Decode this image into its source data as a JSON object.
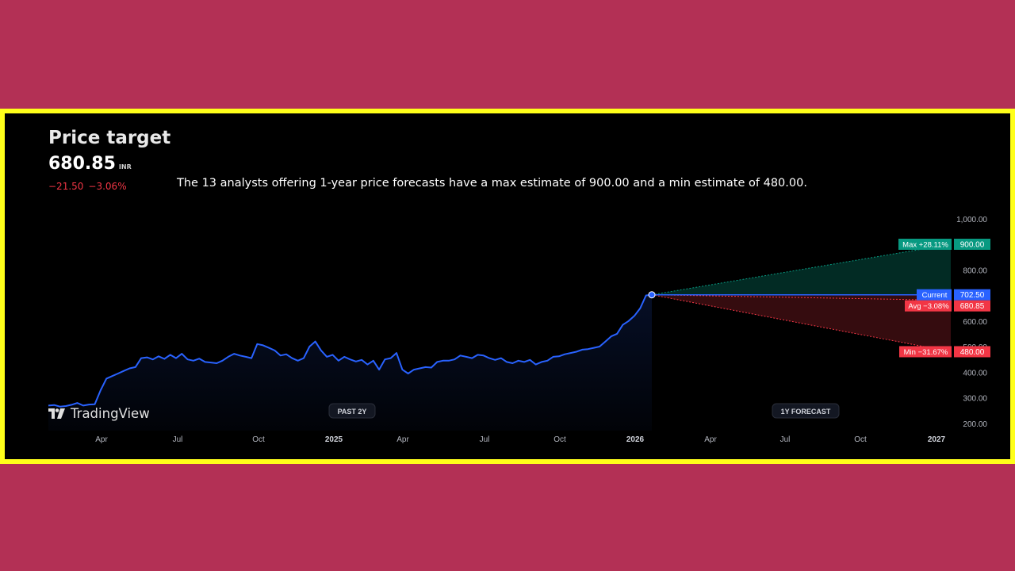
{
  "header": {
    "title": "Price target",
    "price": "680.85",
    "currency": "INR",
    "change_abs": "−21.50",
    "change_pct": "−3.06%",
    "summary": "The 13 analysts offering 1-year price forecasts have a max estimate of 900.00 and a min estimate of 480.00."
  },
  "brand": {
    "name": "TradingView",
    "logo_icon": "tradingview-logo-icon"
  },
  "colors": {
    "line": "#2962ff",
    "max": "#089981",
    "min": "#f23645",
    "avg": "#f23645",
    "current": "#2962ff",
    "frame": "#ffff1a",
    "background": "#b33055"
  },
  "chart_data": {
    "type": "line",
    "title": "Price target",
    "ylim": [
      200,
      1000
    ],
    "y_ticks": [
      "1,000.00",
      "800.00",
      "600.00",
      "500.00",
      "400.00",
      "300.00",
      "200.00"
    ],
    "y_tick_values": [
      1000,
      800,
      600,
      500,
      400,
      300,
      200
    ],
    "x_ticks": [
      "Apr",
      "Jul",
      "Oct",
      "2025",
      "Apr",
      "Jul",
      "Oct",
      "2026",
      "Apr",
      "Jul",
      "Oct",
      "2027"
    ],
    "period_labels": [
      "PAST 2Y",
      "1Y FORECAST"
    ],
    "grid": false,
    "history": [
      270,
      272,
      266,
      268,
      273,
      280,
      270,
      274,
      275,
      330,
      375,
      385,
      395,
      405,
      415,
      420,
      455,
      458,
      450,
      462,
      452,
      468,
      455,
      472,
      450,
      445,
      453,
      440,
      438,
      435,
      445,
      460,
      472,
      465,
      460,
      455,
      510,
      505,
      495,
      485,
      465,
      470,
      455,
      445,
      455,
      500,
      520,
      485,
      460,
      468,
      445,
      460,
      450,
      442,
      448,
      430,
      445,
      410,
      450,
      455,
      475,
      410,
      395,
      410,
      415,
      420,
      418,
      440,
      445,
      445,
      450,
      465,
      460,
      455,
      468,
      465,
      455,
      448,
      455,
      440,
      435,
      445,
      440,
      448,
      430,
      440,
      445,
      460,
      462,
      470,
      475,
      480,
      488,
      490,
      495,
      500,
      520,
      540,
      550,
      585,
      600,
      620,
      650,
      700,
      702.5
    ],
    "forecast": {
      "current": {
        "label": "Current",
        "value": 702.5,
        "value_text": "702.50"
      },
      "max": {
        "label": "Max +28.11%",
        "value": 900.0,
        "value_text": "900.00"
      },
      "avg": {
        "label": "Avg −3.08%",
        "value": 680.85,
        "value_text": "680.85"
      },
      "min": {
        "label": "Min −31.67%",
        "value": 480.0,
        "value_text": "480.00"
      }
    }
  }
}
